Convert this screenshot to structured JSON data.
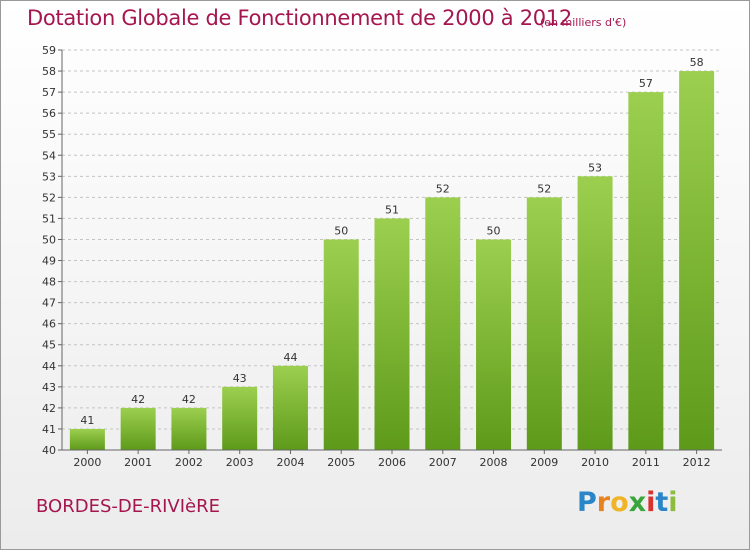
{
  "chart_data": {
    "type": "bar",
    "title": "Dotation Globale de Fonctionnement de 2000 à 2012",
    "unit_note": "(en milliers d'€)",
    "categories": [
      "2000",
      "2001",
      "2002",
      "2003",
      "2004",
      "2005",
      "2006",
      "2007",
      "2008",
      "2009",
      "2010",
      "2011",
      "2012"
    ],
    "values": [
      41,
      42,
      42,
      43,
      44,
      50,
      51,
      52,
      50,
      52,
      53,
      57,
      58
    ],
    "ylim": [
      40,
      59
    ],
    "ytick_step": 1,
    "xlabel": "",
    "ylabel": "",
    "grid": true,
    "colors": {
      "bar_top": "#9ccf4f",
      "bar_bottom": "#5e9a1a",
      "grid": "#c4c4c4",
      "title": "#a5164f"
    }
  },
  "footer": {
    "commune": "BORDES-DE-RIVIèRE",
    "brand": {
      "letters": [
        "P",
        "r",
        "o",
        "x",
        "i",
        "t",
        "i"
      ],
      "colors": [
        "#2a86c8",
        "#e8821e",
        "#f0b429",
        "#3aa53d",
        "#d9322f",
        "#2a86c8",
        "#8cbd3f"
      ]
    }
  }
}
